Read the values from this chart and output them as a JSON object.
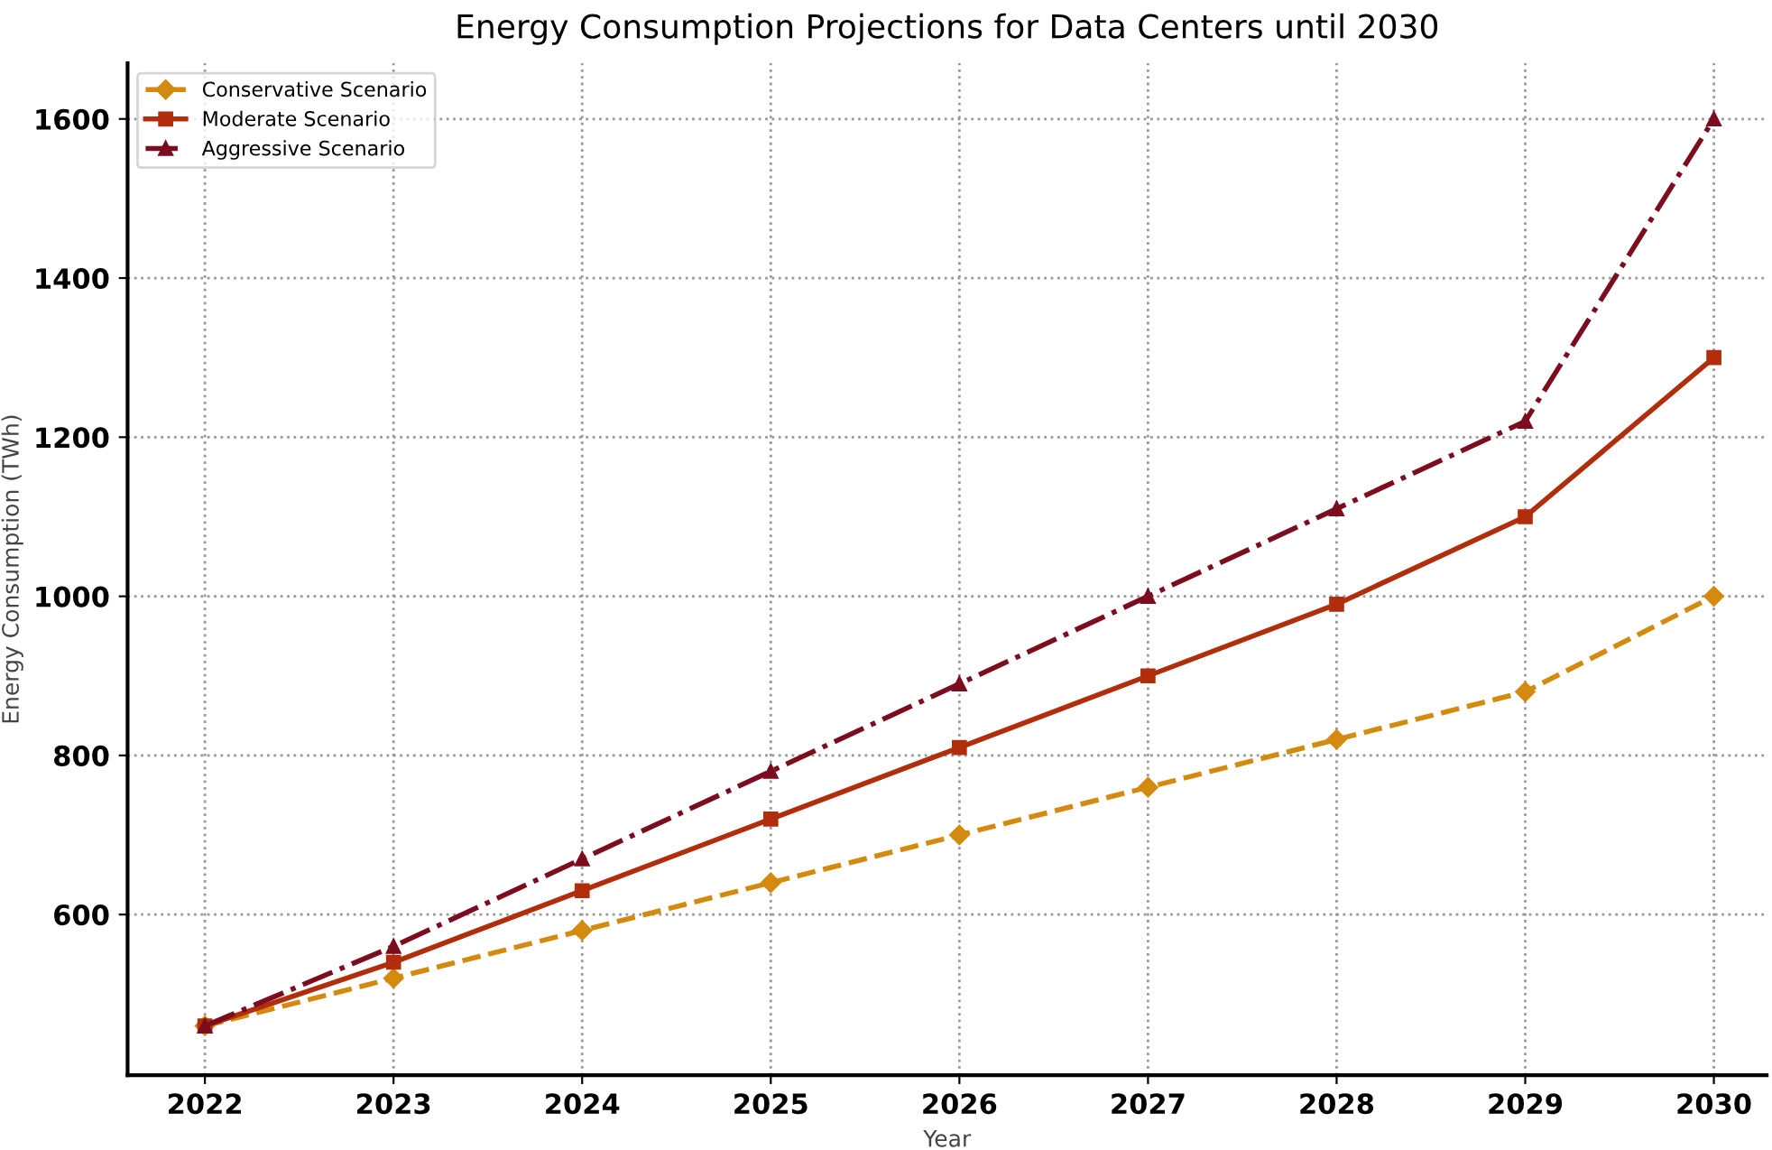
{
  "chart_data": {
    "type": "line",
    "title": "Energy Consumption Projections for Data Centers until 2030",
    "xlabel": "Year",
    "ylabel": "Energy Consumption (TWh)",
    "x": [
      2022,
      2023,
      2024,
      2025,
      2026,
      2027,
      2028,
      2029,
      2030
    ],
    "xlim": [
      2021.59,
      2030.28
    ],
    "xticks": [
      2022,
      2023,
      2024,
      2025,
      2026,
      2027,
      2028,
      2029,
      2030
    ],
    "ylim": [
      398,
      1670
    ],
    "yticks": [
      600,
      800,
      1000,
      1200,
      1400,
      1600
    ],
    "grid": true,
    "legend": "top left",
    "series": [
      {
        "name": "Conservative Scenario",
        "color": "#d4890f",
        "marker": "diamond",
        "line_style": "dashed",
        "values": [
          460,
          520,
          580,
          640,
          700,
          760,
          820,
          880,
          1000
        ]
      },
      {
        "name": "Moderate Scenario",
        "color": "#b02e0c",
        "marker": "square",
        "line_style": "solid",
        "values": [
          460,
          540,
          630,
          720,
          810,
          900,
          990,
          1100,
          1300
        ]
      },
      {
        "name": "Aggressive Scenario",
        "color": "#7b0d1e",
        "marker": "triangle",
        "line_style": "dashdot",
        "values": [
          460,
          560,
          670,
          780,
          890,
          1000,
          1110,
          1220,
          1600
        ]
      }
    ]
  }
}
